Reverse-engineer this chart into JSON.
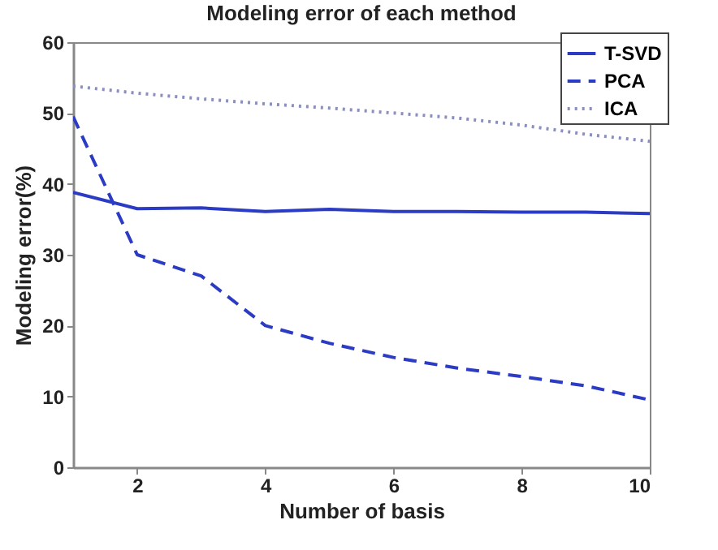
{
  "chart_data": {
    "type": "line",
    "title": "Modeling error of each method",
    "xlabel": "Number of basis",
    "ylabel": "Modeling error(%)",
    "x": [
      1,
      2,
      3,
      4,
      5,
      6,
      7,
      8,
      9,
      10
    ],
    "series": [
      {
        "name": "T-SVD",
        "color": "#2b3bc4",
        "line_style": "solid",
        "values": [
          38.8,
          36.5,
          36.6,
          36.1,
          36.4,
          36.1,
          36.1,
          36.0,
          36.0,
          35.8
        ]
      },
      {
        "name": "PCA",
        "color": "#2b3bc4",
        "line_style": "dashed",
        "values": [
          49.5,
          30,
          27,
          20,
          17.5,
          15.5,
          14,
          12.8,
          11.5,
          9.5
        ]
      },
      {
        "name": "ICA",
        "color": "#8a8fc0",
        "line_style": "dotted",
        "values": [
          53.8,
          52.8,
          52,
          51.3,
          50.7,
          50,
          49.3,
          48.3,
          47,
          46
        ]
      }
    ],
    "xlim": [
      1,
      10
    ],
    "xticks": [
      2,
      4,
      6,
      8,
      10
    ],
    "ylim": [
      0,
      60
    ],
    "yticks": [
      0,
      10,
      20,
      30,
      40,
      50,
      60
    ],
    "grid": false,
    "legend": "top right",
    "marker": "none"
  }
}
